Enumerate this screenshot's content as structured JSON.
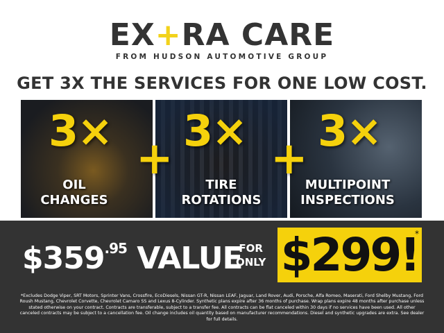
{
  "logo": {
    "part1": "EX",
    "plus": "+",
    "part2": "RA CARE",
    "tagline": "FROM HUDSON AUTOMOTIVE GROUP"
  },
  "headline": "GET 3X THE SERVICES FOR ONE LOW COST.",
  "panels": [
    {
      "count": "3×",
      "label_line1": "OIL",
      "label_line2": "CHANGES"
    },
    {
      "count": "3×",
      "label_line1": "TIRE",
      "label_line2": "ROTATIONS"
    },
    {
      "count": "3×",
      "label_line1": "MULTIPOINT",
      "label_line2": "INSPECTIONS"
    }
  ],
  "plus_sign": "+",
  "offer": {
    "value_dollars": "$359",
    "value_cents": ".95",
    "value_word": "VALUE",
    "for": "FOR",
    "only": "ONLY",
    "price": "$299!",
    "asterisk": "*"
  },
  "colors": {
    "accent": "#f5d10c",
    "dark": "#333333"
  },
  "disclaimer": "*Excludes Dodge Viper, SRT Motors, Sprinter Vans, Crossfire, EcoDiesels, Nissan GT-R, Nissan LEAF, Jaguar, Land Rover, Audi, Porsche, Alfa Romeo, Maserati, Ford Shelby Mustang, Ford Roush Mustang, Chevrolet Corvette, Chevrolet Camaro SS and Lexus 8-Cylinder. Synthetic plans expire after 36 months of purchase. Wrap plans expire 48 months after purchase unless stated otherwise on your contract. Contracts are transferable, subject to a transfer fee. All contracts can be flat canceled within 30 days if no services have been used. All other canceled contracts may be subject to a cancellation fee. Oil change includes oil quantity based on manufacturer recommendations. Diesel and synthetic upgrades are extra. See dealer for full details."
}
